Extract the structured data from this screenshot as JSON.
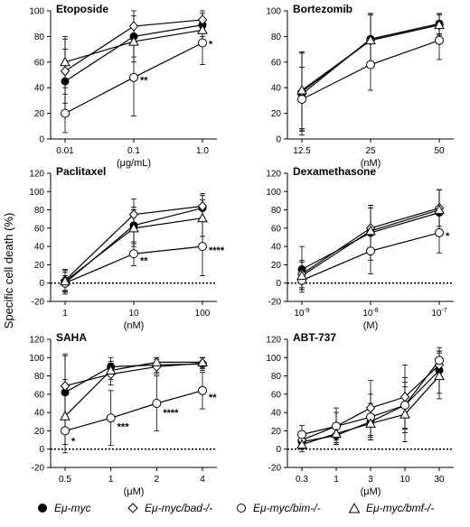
{
  "figure": {
    "y_axis_label": "Specific cell death (%)",
    "colors": {
      "ink": "#000000",
      "open_fill": "#ffffff"
    }
  },
  "legend": [
    {
      "label": "Eμ-myc",
      "marker": "filled-circle"
    },
    {
      "label": "Eμ-myc/bad-/-",
      "marker": "open-diamond"
    },
    {
      "label": "Eμ-myc/bim-/-",
      "marker": "open-circle"
    },
    {
      "label": "Eμ-myc/bmf-/-",
      "marker": "open-triangle"
    }
  ],
  "chart_data": [
    {
      "type": "line",
      "title": "Etoposide",
      "xlabel": "(μg/mL)",
      "categories": [
        "0.01",
        "0.1",
        "1.0"
      ],
      "ylim": [
        0,
        100
      ],
      "yticks": [
        0,
        20,
        40,
        60,
        80,
        100
      ],
      "grid": false,
      "series": [
        {
          "name": "Eμ-myc",
          "values": [
            45,
            80,
            89
          ],
          "errors": [
            25,
            20,
            9
          ]
        },
        {
          "name": "Eμ-myc/bad-/-",
          "values": [
            53,
            88,
            93
          ],
          "errors": [
            25,
            8,
            7
          ]
        },
        {
          "name": "Eμ-myc/bim-/-",
          "values": [
            20,
            48,
            75
          ],
          "errors": [
            15,
            30,
            17
          ]
        },
        {
          "name": "Eμ-myc/bmf-/-",
          "values": [
            60,
            76,
            85
          ],
          "errors": [
            20,
            12,
            9
          ]
        }
      ],
      "annotations": [
        {
          "category": "0.1",
          "y": 47,
          "text": "**"
        },
        {
          "category": "1.0",
          "y": 75,
          "text": "*"
        }
      ]
    },
    {
      "type": "line",
      "title": "Bortezomib",
      "xlabel": "(nM)",
      "categories": [
        "12.5",
        "25",
        "50"
      ],
      "ylim": [
        0,
        100
      ],
      "yticks": [
        0,
        20,
        40,
        60,
        80,
        100
      ],
      "grid": false,
      "series": [
        {
          "name": "Eμ-myc",
          "values": [
            35,
            78,
            90
          ],
          "errors": [
            32,
            20,
            8
          ]
        },
        {
          "name": "Eμ-myc/bad-/-",
          "values": [
            37,
            77,
            89
          ],
          "errors": [
            30,
            20,
            8
          ]
        },
        {
          "name": "Eμ-myc/bim-/-",
          "values": [
            31,
            58,
            77
          ],
          "errors": [
            25,
            20,
            15
          ]
        },
        {
          "name": "Eμ-myc/bmf-/-",
          "values": [
            38,
            77,
            89
          ],
          "errors": [
            30,
            20,
            8
          ]
        }
      ],
      "annotations": []
    },
    {
      "type": "line",
      "title": "Paclitaxel",
      "xlabel": "(nM)",
      "categories": [
        "1",
        "10",
        "100"
      ],
      "ylim": [
        -20,
        120
      ],
      "yticks": [
        -20,
        0,
        20,
        40,
        60,
        80,
        100,
        120
      ],
      "grid": false,
      "zero_line": true,
      "series": [
        {
          "name": "Eμ-myc",
          "values": [
            0,
            63,
            82
          ],
          "errors": [
            12,
            20,
            14
          ]
        },
        {
          "name": "Eμ-myc/bad-/-",
          "values": [
            3,
            75,
            84
          ],
          "errors": [
            12,
            17,
            14
          ]
        },
        {
          "name": "Eμ-myc/bim-/-",
          "values": [
            0,
            32,
            40
          ],
          "errors": [
            8,
            13,
            32
          ]
        },
        {
          "name": "Eμ-myc/bmf-/-",
          "values": [
            2,
            60,
            71
          ],
          "errors": [
            12,
            20,
            20
          ]
        }
      ],
      "annotations": [
        {
          "category": "10",
          "y": 26,
          "text": "**"
        },
        {
          "category": "100",
          "y": 37,
          "text": "****"
        }
      ]
    },
    {
      "type": "line",
      "title": "Dexamethasone",
      "xlabel": "(M)",
      "categories": [
        "10-9",
        "10-8",
        "10-7"
      ],
      "ylim": [
        -20,
        120
      ],
      "yticks": [
        -20,
        0,
        20,
        40,
        60,
        80,
        100,
        120
      ],
      "grid": false,
      "zero_line": true,
      "series": [
        {
          "name": "Eμ-myc",
          "values": [
            15,
            55,
            77
          ],
          "errors": [
            25,
            30,
            25
          ]
        },
        {
          "name": "Eμ-myc/bad-/-",
          "values": [
            10,
            60,
            82
          ],
          "errors": [
            15,
            25,
            20
          ]
        },
        {
          "name": "Eμ-myc/bim-/-",
          "values": [
            3,
            35,
            55
          ],
          "errors": [
            10,
            25,
            22
          ]
        },
        {
          "name": "Eμ-myc/bmf-/-",
          "values": [
            8,
            57,
            80
          ],
          "errors": [
            15,
            25,
            22
          ]
        }
      ],
      "annotations": [
        {
          "category": "10-7",
          "y": 53,
          "text": "*"
        }
      ]
    },
    {
      "type": "line",
      "title": "SAHA",
      "xlabel": "(μM)",
      "categories": [
        "0.5",
        "1",
        "2",
        "4"
      ],
      "ylim": [
        -20,
        120
      ],
      "yticks": [
        -20,
        0,
        20,
        40,
        60,
        80,
        100,
        120
      ],
      "grid": false,
      "zero_line": true,
      "series": [
        {
          "name": "Eμ-myc",
          "values": [
            62,
            90,
            92,
            93
          ],
          "errors": [
            40,
            10,
            8,
            7
          ]
        },
        {
          "name": "Eμ-myc/bad-/-",
          "values": [
            69,
            82,
            90,
            94
          ],
          "errors": [
            35,
            12,
            8,
            6
          ]
        },
        {
          "name": "Eμ-myc/bim-/-",
          "values": [
            20,
            34,
            50,
            64
          ],
          "errors": [
            15,
            30,
            30,
            20
          ]
        },
        {
          "name": "Eμ-myc/bmf-/-",
          "values": [
            36,
            86,
            95,
            95
          ],
          "errors": [
            40,
            10,
            5,
            5
          ]
        }
      ],
      "annotations": [
        {
          "category": "0.5",
          "y": 10,
          "text": "*"
        },
        {
          "category": "1",
          "y": 26,
          "text": "***"
        },
        {
          "category": "2",
          "y": 41,
          "text": "****"
        },
        {
          "category": "4",
          "y": 58,
          "text": "**"
        }
      ]
    },
    {
      "type": "line",
      "title": "ABT-737",
      "xlabel": "(μM)",
      "categories": [
        "0.3",
        "1",
        "3",
        "10",
        "30"
      ],
      "ylim": [
        -20,
        120
      ],
      "yticks": [
        -20,
        0,
        20,
        40,
        60,
        80,
        100,
        120
      ],
      "grid": false,
      "zero_line": true,
      "series": [
        {
          "name": "Eμ-myc",
          "values": [
            8,
            15,
            30,
            48,
            86
          ],
          "errors": [
            8,
            10,
            20,
            25,
            25
          ]
        },
        {
          "name": "Eμ-myc/bad-/-",
          "values": [
            10,
            25,
            45,
            57,
            92
          ],
          "errors": [
            10,
            20,
            30,
            35,
            15
          ]
        },
        {
          "name": "Eμ-myc/bim-/-",
          "values": [
            16,
            25,
            35,
            48,
            97
          ],
          "errors": [
            10,
            15,
            25,
            30,
            10
          ]
        },
        {
          "name": "Eμ-myc/bmf-/-",
          "values": [
            5,
            17,
            28,
            38,
            80
          ],
          "errors": [
            8,
            10,
            15,
            30,
            25
          ]
        }
      ],
      "annotations": []
    }
  ]
}
